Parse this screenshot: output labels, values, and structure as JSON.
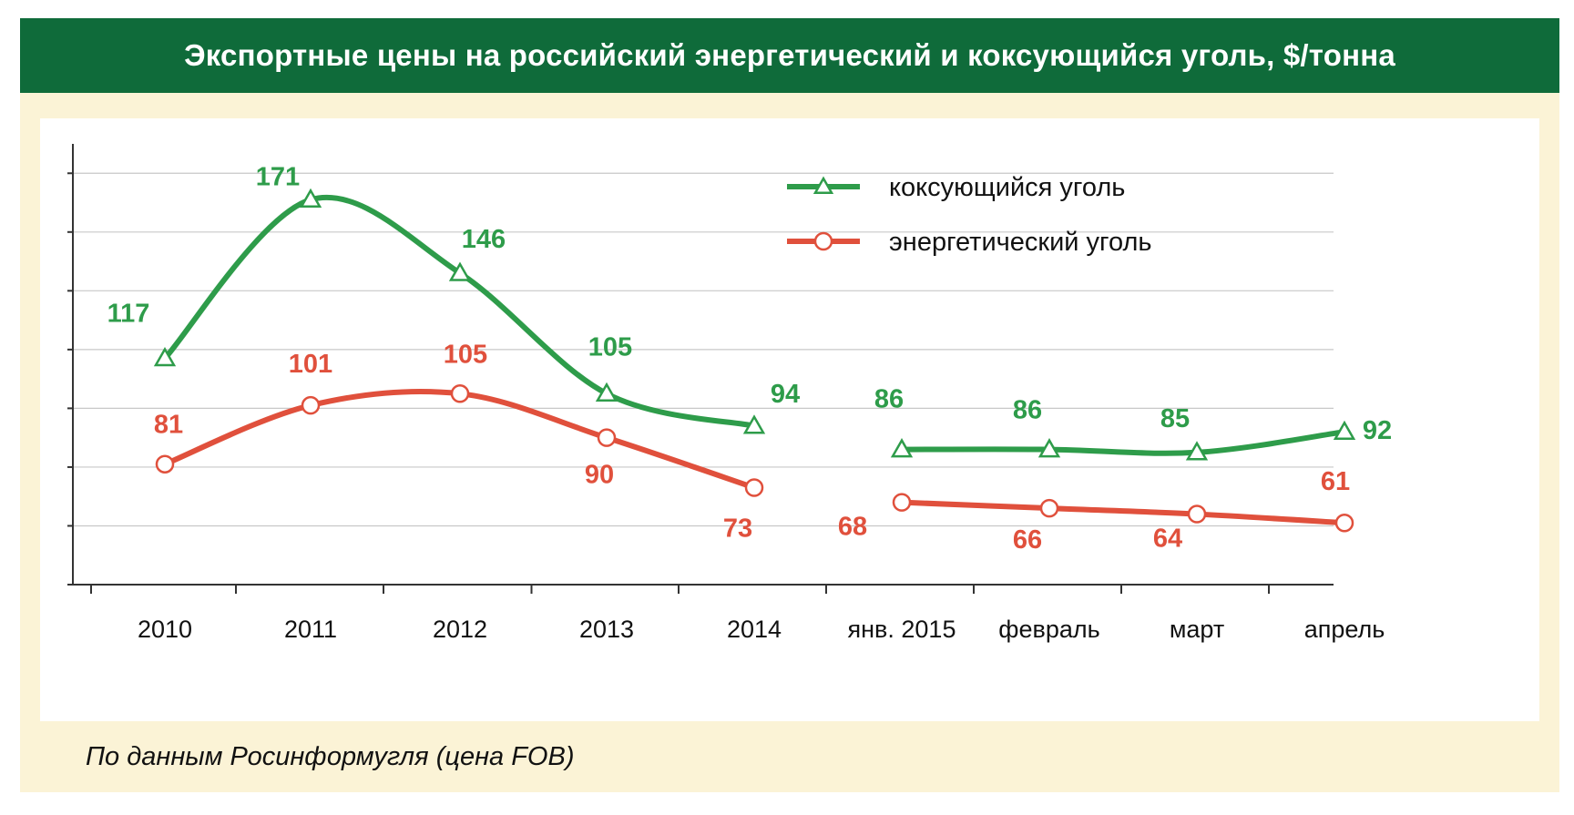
{
  "title": "Экспортные цены на российский энергетический и коксующийся уголь, $/тонна",
  "source": "По данным Росинформугля (цена FOB)",
  "colors": {
    "header_bg": "#0f6b3a",
    "frame_bg": "#fbf3d6",
    "coking": "#2e9c4a",
    "thermal": "#e0503c",
    "grid": "#c8c8c8"
  },
  "chart_data": {
    "type": "line",
    "categories": [
      "2010",
      "2011",
      "2012",
      "2013",
      "2014",
      "янв. 2015",
      "февраль",
      "март",
      "апрель"
    ],
    "series": [
      {
        "name": "коксующийся уголь",
        "marker": "triangle",
        "color": "#2e9c4a",
        "values": [
          117,
          171,
          146,
          105,
          94,
          86,
          86,
          85,
          92
        ],
        "labels": [
          "117",
          "171",
          "146",
          "105",
          "94",
          "86",
          "86",
          "85",
          "92"
        ]
      },
      {
        "name": "энергетический уголь",
        "marker": "circle",
        "color": "#e0503c",
        "values": [
          81,
          101,
          105,
          90,
          73,
          68,
          66,
          64,
          61
        ],
        "labels": [
          "81",
          "101",
          "105",
          "90",
          "73",
          "68",
          "66",
          "64",
          "61"
        ]
      }
    ],
    "gap_after_index": 4,
    "ylim": [
      40,
      190
    ],
    "yticks": [
      40,
      60,
      80,
      100,
      120,
      140,
      160,
      180
    ],
    "grid": true,
    "legend_position": "top-right",
    "xlabel": "",
    "ylabel": ""
  }
}
